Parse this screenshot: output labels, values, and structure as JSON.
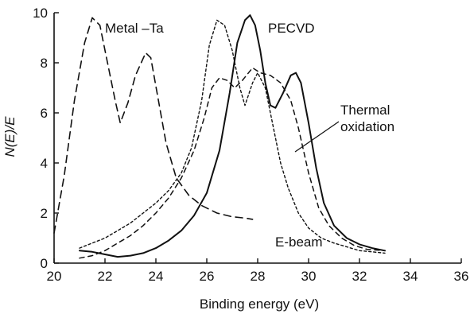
{
  "chart_data": {
    "type": "line",
    "title": "",
    "xlabel": "Binding energy (eV)",
    "ylabel": "N(E)/E",
    "xlim": [
      20,
      36
    ],
    "ylim": [
      0,
      10
    ],
    "x_ticks": [
      "20",
      "22",
      "24",
      "26",
      "28",
      "30",
      "32",
      "34",
      "36"
    ],
    "y_ticks": [
      "0",
      "2",
      "4",
      "6",
      "8",
      "10"
    ],
    "grid": false,
    "legend": "none",
    "series": [
      {
        "name": "Metal –Ta",
        "style": "long-dash",
        "points": [
          [
            20.0,
            1.2
          ],
          [
            20.4,
            3.5
          ],
          [
            20.8,
            6.5
          ],
          [
            21.2,
            8.8
          ],
          [
            21.5,
            9.8
          ],
          [
            21.8,
            9.5
          ],
          [
            22.1,
            8.0
          ],
          [
            22.4,
            6.5
          ],
          [
            22.6,
            5.6
          ],
          [
            22.9,
            6.4
          ],
          [
            23.2,
            7.5
          ],
          [
            23.6,
            8.4
          ],
          [
            23.8,
            8.2
          ],
          [
            24.1,
            6.5
          ],
          [
            24.4,
            4.8
          ],
          [
            24.8,
            3.4
          ],
          [
            25.3,
            2.7
          ],
          [
            25.8,
            2.3
          ],
          [
            26.4,
            2.0
          ],
          [
            27.0,
            1.85
          ],
          [
            27.5,
            1.8
          ],
          [
            27.8,
            1.75
          ]
        ]
      },
      {
        "name": "PECVD",
        "style": "solid",
        "points": [
          [
            21.0,
            0.5
          ],
          [
            21.5,
            0.45
          ],
          [
            22.0,
            0.35
          ],
          [
            22.5,
            0.25
          ],
          [
            23.0,
            0.3
          ],
          [
            23.5,
            0.4
          ],
          [
            24.0,
            0.6
          ],
          [
            24.5,
            0.9
          ],
          [
            25.0,
            1.3
          ],
          [
            25.5,
            1.9
          ],
          [
            26.0,
            2.8
          ],
          [
            26.5,
            4.5
          ],
          [
            26.9,
            6.8
          ],
          [
            27.2,
            8.8
          ],
          [
            27.5,
            9.7
          ],
          [
            27.7,
            9.9
          ],
          [
            27.9,
            9.5
          ],
          [
            28.1,
            8.5
          ],
          [
            28.3,
            7.2
          ],
          [
            28.5,
            6.3
          ],
          [
            28.7,
            6.2
          ],
          [
            29.0,
            6.8
          ],
          [
            29.3,
            7.5
          ],
          [
            29.5,
            7.6
          ],
          [
            29.7,
            7.2
          ],
          [
            30.0,
            5.6
          ],
          [
            30.3,
            3.8
          ],
          [
            30.6,
            2.4
          ],
          [
            31.0,
            1.5
          ],
          [
            31.5,
            1.0
          ],
          [
            32.0,
            0.75
          ],
          [
            32.5,
            0.6
          ],
          [
            33.0,
            0.5
          ]
        ]
      },
      {
        "name": "Thermal oxidation",
        "style": "medium-dash",
        "points": [
          [
            21.0,
            0.2
          ],
          [
            21.5,
            0.3
          ],
          [
            22.0,
            0.5
          ],
          [
            22.5,
            0.8
          ],
          [
            23.0,
            1.1
          ],
          [
            23.5,
            1.5
          ],
          [
            24.0,
            2.0
          ],
          [
            24.5,
            2.6
          ],
          [
            25.0,
            3.4
          ],
          [
            25.5,
            4.5
          ],
          [
            25.9,
            5.8
          ],
          [
            26.2,
            7.0
          ],
          [
            26.5,
            7.4
          ],
          [
            26.8,
            7.3
          ],
          [
            27.1,
            7.0
          ],
          [
            27.4,
            7.3
          ],
          [
            27.8,
            7.8
          ],
          [
            28.1,
            7.6
          ],
          [
            28.5,
            7.5
          ],
          [
            28.9,
            7.2
          ],
          [
            29.3,
            6.5
          ],
          [
            29.6,
            5.4
          ],
          [
            30.0,
            3.6
          ],
          [
            30.4,
            2.2
          ],
          [
            30.8,
            1.5
          ],
          [
            31.3,
            1.0
          ],
          [
            31.8,
            0.7
          ],
          [
            32.3,
            0.55
          ],
          [
            33.0,
            0.5
          ]
        ]
      },
      {
        "name": "E-beam",
        "style": "short-dash",
        "points": [
          [
            21.0,
            0.6
          ],
          [
            21.5,
            0.8
          ],
          [
            22.0,
            1.0
          ],
          [
            22.5,
            1.3
          ],
          [
            23.0,
            1.6
          ],
          [
            23.5,
            2.0
          ],
          [
            24.0,
            2.4
          ],
          [
            24.5,
            2.9
          ],
          [
            25.0,
            3.6
          ],
          [
            25.4,
            4.6
          ],
          [
            25.8,
            6.5
          ],
          [
            26.1,
            8.7
          ],
          [
            26.4,
            9.7
          ],
          [
            26.7,
            9.5
          ],
          [
            27.0,
            8.5
          ],
          [
            27.3,
            7.0
          ],
          [
            27.5,
            6.3
          ],
          [
            27.8,
            7.2
          ],
          [
            28.0,
            7.6
          ],
          [
            28.3,
            7.0
          ],
          [
            28.6,
            5.5
          ],
          [
            28.9,
            4.0
          ],
          [
            29.2,
            3.0
          ],
          [
            29.6,
            2.0
          ],
          [
            30.0,
            1.4
          ],
          [
            30.5,
            1.0
          ],
          [
            31.0,
            0.8
          ],
          [
            31.5,
            0.65
          ],
          [
            32.0,
            0.5
          ],
          [
            32.5,
            0.45
          ],
          [
            33.0,
            0.4
          ]
        ]
      }
    ],
    "annotations": {
      "metal": "Metal –Ta",
      "pecvd": "PECVD",
      "thermal_1": "Thermal",
      "thermal_2": "oxidation",
      "ebeam": "E-beam"
    }
  }
}
